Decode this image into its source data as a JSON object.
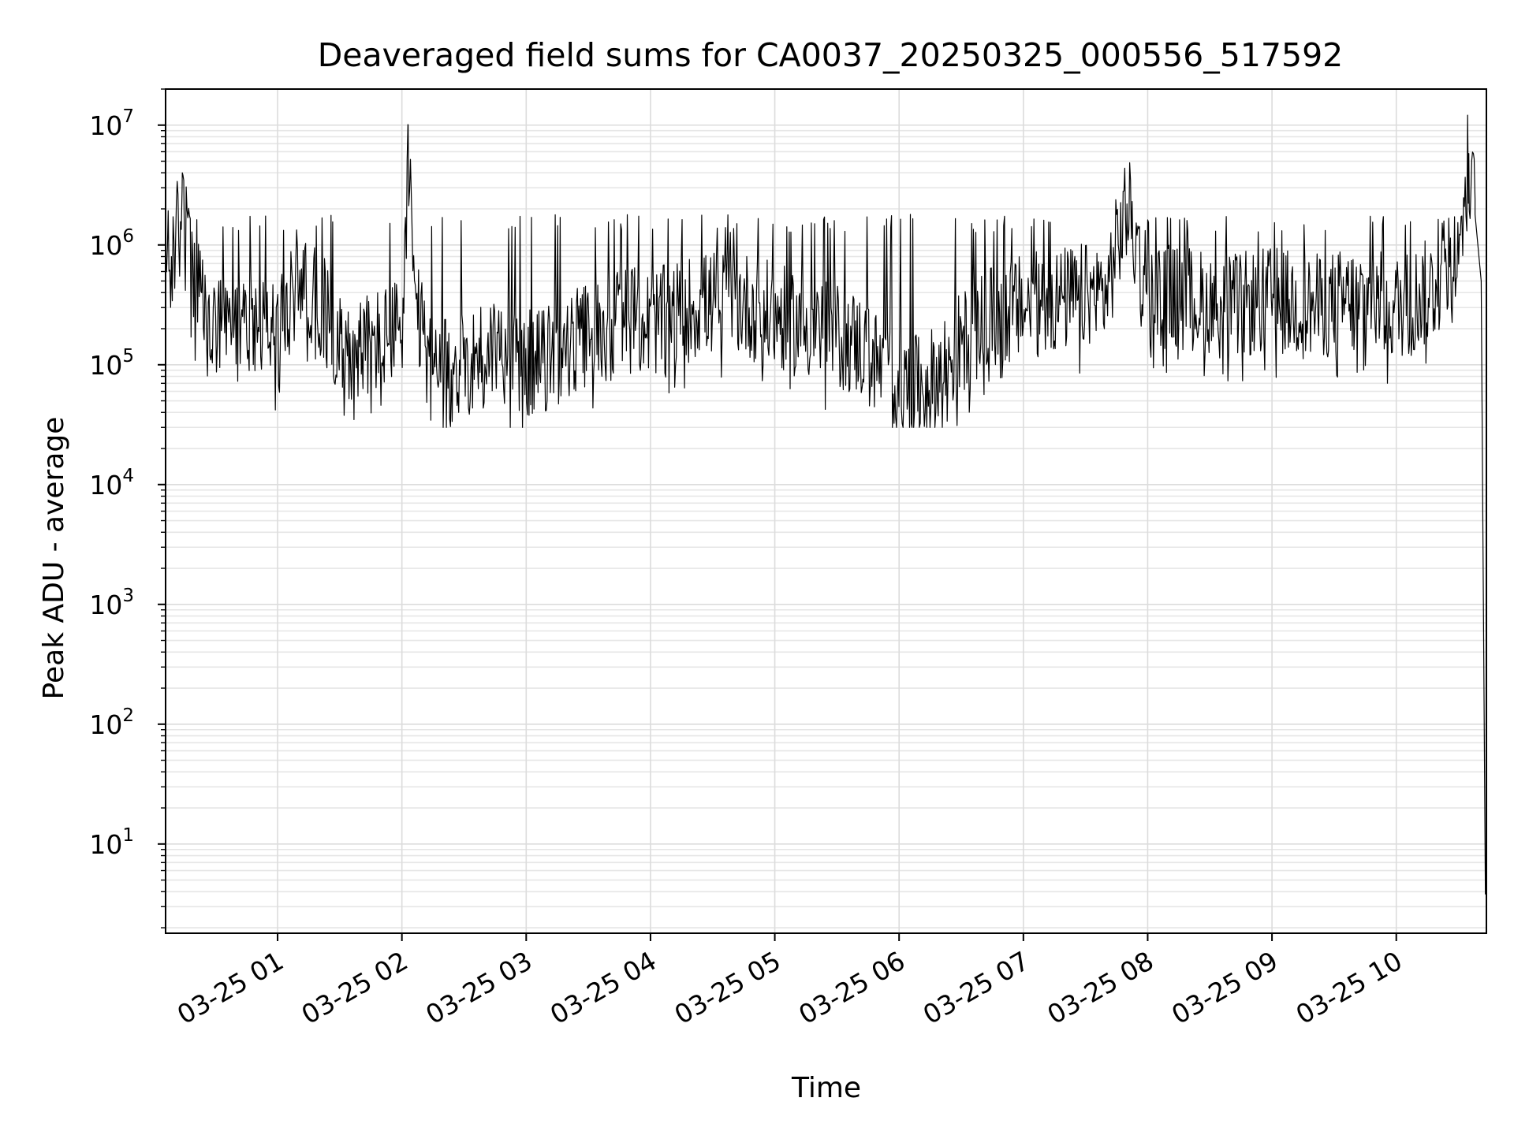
{
  "chart_data": {
    "type": "line",
    "title": "Deaveraged field sums for CA0037_20250325_000556_517592",
    "xlabel": "Time",
    "ylabel": "Peak ADU - average",
    "yscale": "log",
    "ylim": [
      1.8,
      20000000
    ],
    "xlim": [
      "2025-03-25 00:05:56",
      "2025-03-25 10:43:30"
    ],
    "grid": "both (major and minor)",
    "line_color": "#000000",
    "grid_color": "#dcdcdc",
    "x_ticks": [
      {
        "label": "03-25 01",
        "value": "2025-03-25 01:00"
      },
      {
        "label": "03-25 02",
        "value": "2025-03-25 02:00"
      },
      {
        "label": "03-25 03",
        "value": "2025-03-25 03:00"
      },
      {
        "label": "03-25 04",
        "value": "2025-03-25 04:00"
      },
      {
        "label": "03-25 05",
        "value": "2025-03-25 05:00"
      },
      {
        "label": "03-25 06",
        "value": "2025-03-25 06:00"
      },
      {
        "label": "03-25 07",
        "value": "2025-03-25 07:00"
      },
      {
        "label": "03-25 08",
        "value": "2025-03-25 08:00"
      },
      {
        "label": "03-25 09",
        "value": "2025-03-25 09:00"
      },
      {
        "label": "03-25 10",
        "value": "2025-03-25 10:00"
      }
    ],
    "y_ticks": [
      {
        "base": "10",
        "exp": "1",
        "value": 10
      },
      {
        "base": "10",
        "exp": "2",
        "value": 100
      },
      {
        "base": "10",
        "exp": "3",
        "value": 1000
      },
      {
        "base": "10",
        "exp": "4",
        "value": 10000
      },
      {
        "base": "10",
        "exp": "5",
        "value": 100000
      },
      {
        "base": "10",
        "exp": "6",
        "value": 1000000
      },
      {
        "base": "10",
        "exp": "7",
        "value": 10000000
      }
    ],
    "series": [
      {
        "x": [
          "2025-03-25 00:06",
          "2025-03-25 00:09",
          "2025-03-25 00:12",
          "2025-03-25 00:14",
          "2025-03-25 00:16",
          "2025-03-25 00:20",
          "2025-03-25 00:25",
          "2025-03-25 00:30",
          "2025-03-25 00:40",
          "2025-03-25 00:50",
          "2025-03-25 01:00",
          "2025-03-25 01:05",
          "2025-03-25 01:10",
          "2025-03-25 01:20",
          "2025-03-25 01:30",
          "2025-03-25 01:40",
          "2025-03-25 01:50",
          "2025-03-25 02:00",
          "2025-03-25 02:03",
          "2025-03-25 02:06",
          "2025-03-25 02:15",
          "2025-03-25 02:30",
          "2025-03-25 02:45",
          "2025-03-25 03:00",
          "2025-03-25 03:15",
          "2025-03-25 03:30",
          "2025-03-25 03:45",
          "2025-03-25 04:00",
          "2025-03-25 04:20",
          "2025-03-25 04:40",
          "2025-03-25 05:00",
          "2025-03-25 05:20",
          "2025-03-25 05:40",
          "2025-03-25 05:55",
          "2025-03-25 06:05",
          "2025-03-25 06:15",
          "2025-03-25 06:30",
          "2025-03-25 06:45",
          "2025-03-25 07:00",
          "2025-03-25 07:20",
          "2025-03-25 07:40",
          "2025-03-25 07:50",
          "2025-03-25 08:00",
          "2025-03-25 08:20",
          "2025-03-25 08:40",
          "2025-03-25 09:00",
          "2025-03-25 09:20",
          "2025-03-25 09:40",
          "2025-03-25 10:00",
          "2025-03-25 10:15",
          "2025-03-25 10:30",
          "2025-03-25 10:35",
          "2025-03-25 10:38",
          "2025-03-25 10:41",
          "2025-03-25 10:43"
        ],
        "y": [
          800000,
          600000,
          1500000,
          4000000,
          1200000,
          500000,
          250000,
          180000,
          200000,
          250000,
          180000,
          250000,
          600000,
          350000,
          150000,
          140000,
          160000,
          200000,
          10000000,
          300000,
          80000,
          100000,
          150000,
          100000,
          120000,
          180000,
          250000,
          220000,
          300000,
          350000,
          250000,
          200000,
          150000,
          80000,
          60000,
          70000,
          150000,
          250000,
          300000,
          350000,
          400000,
          2200000,
          400000,
          350000,
          300000,
          350000,
          300000,
          350000,
          300000,
          400000,
          700000,
          5800000,
          1800000,
          500000,
          3.8
        ],
        "amplitude_range": [
          30000,
          1800000
        ]
      }
    ]
  }
}
